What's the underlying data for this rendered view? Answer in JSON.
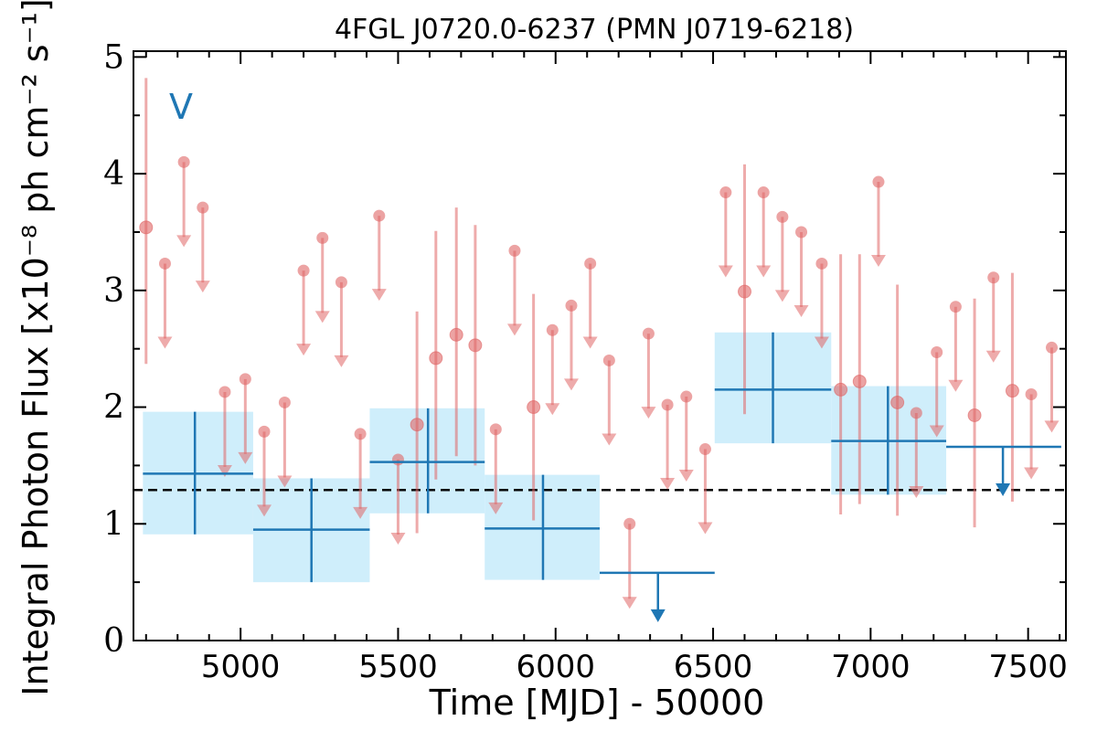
{
  "chart_data": {
    "type": "scatter",
    "title": "4FGL J0720.0-6237 (PMN J0719-6218)",
    "xlabel": "Time [MJD] - 50000",
    "ylabel": "Integral Photon Flux [x10⁻⁸ ph cm⁻² s⁻¹]",
    "band_label": "V",
    "xlim": [
      4660,
      7620
    ],
    "ylim": [
      0,
      5.05
    ],
    "xticks": [
      5000,
      5500,
      6000,
      6500,
      7000,
      7500
    ],
    "yticks": [
      0,
      1,
      2,
      3,
      4,
      5
    ],
    "grid": false,
    "reference_line": 1.29,
    "colors": {
      "short_bins": "#e06666",
      "long_bins": "#1f77b4",
      "long_band_fill": "#cfeefb",
      "reference_line": "#000000"
    },
    "series": [
      {
        "kind": "short",
        "detections": [
          {
            "x": 4700,
            "y": 3.54,
            "ylo": 2.37,
            "yhi": 4.82
          },
          {
            "x": 5560,
            "y": 1.85,
            "ylo": 0.92,
            "yhi": 2.82
          },
          {
            "x": 5620,
            "y": 2.42,
            "ylo": 1.38,
            "yhi": 3.51
          },
          {
            "x": 5685,
            "y": 2.62,
            "ylo": 1.58,
            "yhi": 3.71
          },
          {
            "x": 5745,
            "y": 2.53,
            "ylo": 1.5,
            "yhi": 3.56
          },
          {
            "x": 5930,
            "y": 2.0,
            "ylo": 1.03,
            "yhi": 2.97
          },
          {
            "x": 6600,
            "y": 2.99,
            "ylo": 1.94,
            "yhi": 4.08
          },
          {
            "x": 6905,
            "y": 2.15,
            "ylo": 1.08,
            "yhi": 3.31
          },
          {
            "x": 6965,
            "y": 2.22,
            "ylo": 1.17,
            "yhi": 3.31
          },
          {
            "x": 7085,
            "y": 2.04,
            "ylo": 1.07,
            "yhi": 3.05
          },
          {
            "x": 7330,
            "y": 1.93,
            "ylo": 0.97,
            "yhi": 2.93
          },
          {
            "x": 7450,
            "y": 2.14,
            "ylo": 1.19,
            "yhi": 3.15
          }
        ],
        "upper_limits": [
          {
            "x": 4760,
            "y": 3.23
          },
          {
            "x": 4820,
            "y": 4.1
          },
          {
            "x": 4880,
            "y": 3.71
          },
          {
            "x": 4950,
            "y": 2.13
          },
          {
            "x": 5015,
            "y": 2.24
          },
          {
            "x": 5075,
            "y": 1.79
          },
          {
            "x": 5140,
            "y": 2.04
          },
          {
            "x": 5200,
            "y": 3.17
          },
          {
            "x": 5260,
            "y": 3.45
          },
          {
            "x": 5320,
            "y": 3.07
          },
          {
            "x": 5380,
            "y": 1.77
          },
          {
            "x": 5440,
            "y": 3.64
          },
          {
            "x": 5500,
            "y": 1.55
          },
          {
            "x": 5810,
            "y": 1.81
          },
          {
            "x": 5870,
            "y": 3.34
          },
          {
            "x": 5990,
            "y": 2.66
          },
          {
            "x": 6050,
            "y": 2.87
          },
          {
            "x": 6110,
            "y": 3.23
          },
          {
            "x": 6170,
            "y": 2.4
          },
          {
            "x": 6235,
            "y": 1.0
          },
          {
            "x": 6295,
            "y": 2.63
          },
          {
            "x": 6355,
            "y": 2.02
          },
          {
            "x": 6415,
            "y": 2.09
          },
          {
            "x": 6475,
            "y": 1.64
          },
          {
            "x": 6540,
            "y": 3.84
          },
          {
            "x": 6660,
            "y": 3.84
          },
          {
            "x": 6720,
            "y": 3.63
          },
          {
            "x": 6780,
            "y": 3.5
          },
          {
            "x": 6845,
            "y": 3.23
          },
          {
            "x": 7025,
            "y": 3.93
          },
          {
            "x": 7145,
            "y": 1.95
          },
          {
            "x": 7210,
            "y": 2.47
          },
          {
            "x": 7270,
            "y": 2.86
          },
          {
            "x": 7390,
            "y": 3.11
          },
          {
            "x": 7510,
            "y": 2.11
          },
          {
            "x": 7575,
            "y": 2.51
          }
        ]
      },
      {
        "kind": "long",
        "detections": [
          {
            "x": 4855,
            "x0": 4690,
            "x1": 5040,
            "y": 1.43,
            "ylo": 0.91,
            "yhi": 1.96
          },
          {
            "x": 5225,
            "x0": 5040,
            "x1": 5410,
            "y": 0.95,
            "ylo": 0.5,
            "yhi": 1.39
          },
          {
            "x": 5595,
            "x0": 5410,
            "x1": 5775,
            "y": 1.53,
            "ylo": 1.09,
            "yhi": 1.99
          },
          {
            "x": 5960,
            "x0": 5775,
            "x1": 6140,
            "y": 0.96,
            "ylo": 0.52,
            "yhi": 1.42
          },
          {
            "x": 6690,
            "x0": 6505,
            "x1": 6875,
            "y": 2.15,
            "ylo": 1.69,
            "yhi": 2.64
          },
          {
            "x": 7055,
            "x0": 6875,
            "x1": 7240,
            "y": 1.71,
            "ylo": 1.25,
            "yhi": 2.18
          }
        ],
        "upper_limits": [
          {
            "x": 6325,
            "x0": 6140,
            "x1": 6505,
            "y": 0.58
          },
          {
            "x": 7420,
            "x0": 7240,
            "x1": 7605,
            "y": 1.66
          }
        ]
      }
    ]
  }
}
